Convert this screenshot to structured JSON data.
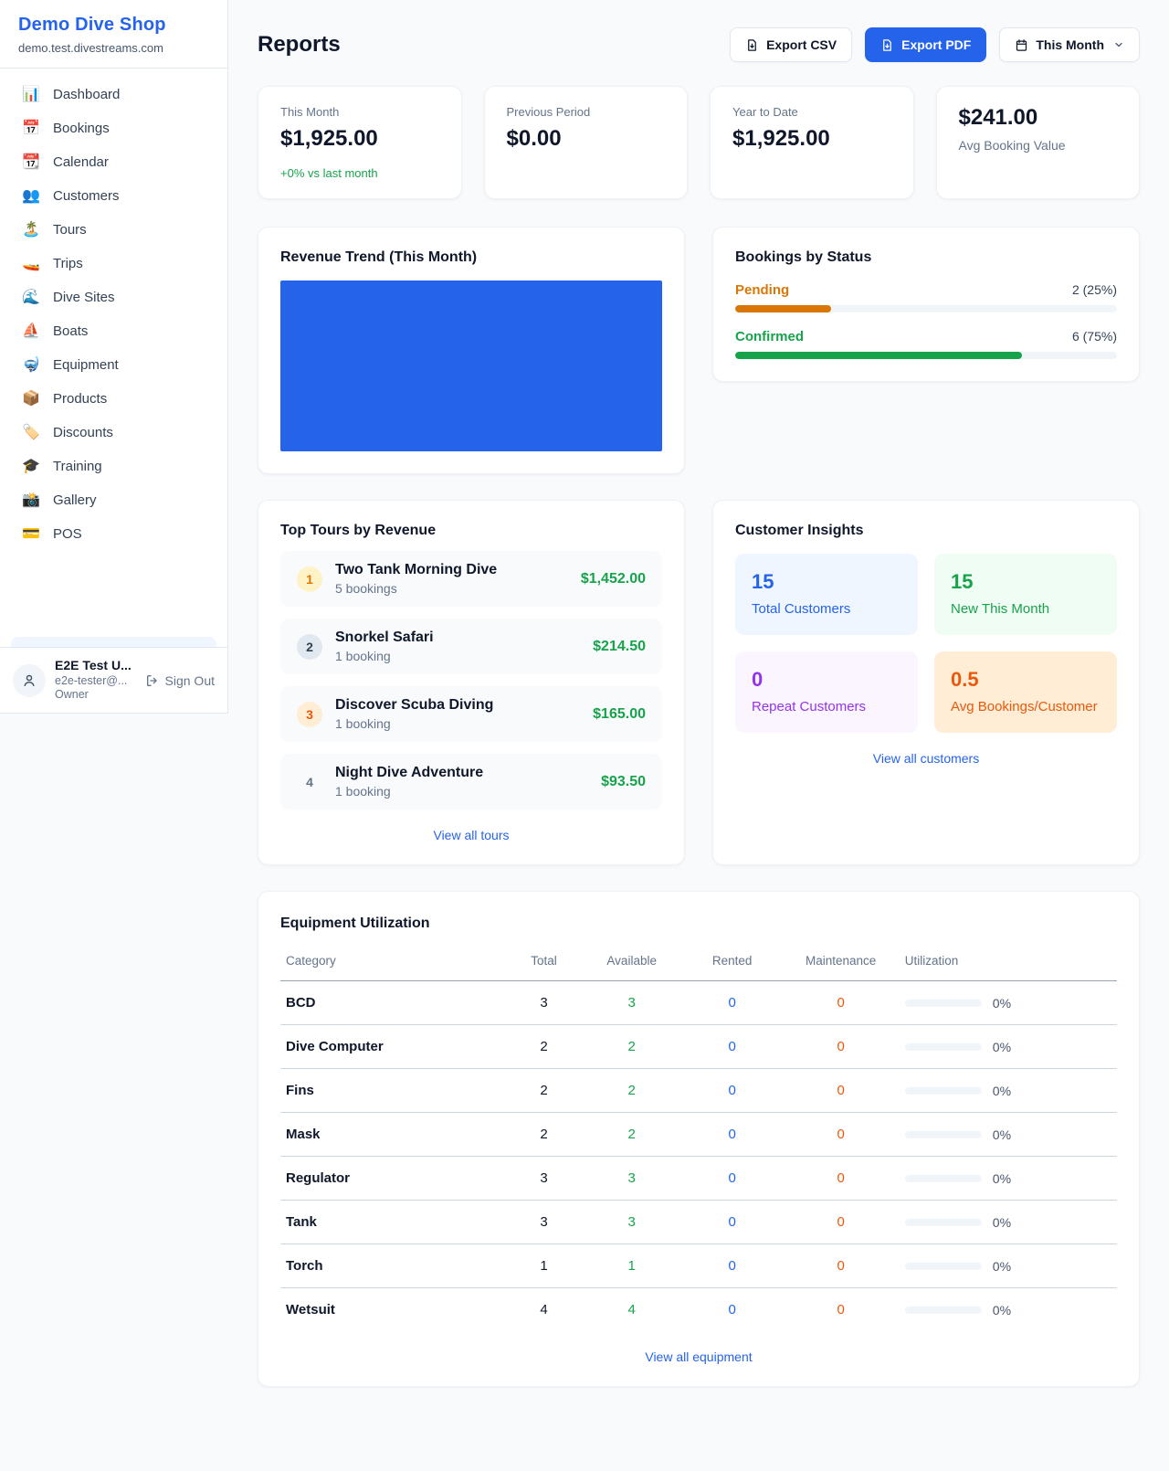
{
  "colors": {
    "primary": "#2563eb",
    "green": "#16a34a",
    "amber": "#d97706",
    "orange": "#ea580c",
    "purple": "#9333ea",
    "chart_bar": "#2563eb"
  },
  "sidebar": {
    "brand": {
      "name": "Demo Dive Shop",
      "domain": "demo.test.divestreams.com"
    },
    "nav": [
      {
        "label": "Dashboard",
        "icon": "📊"
      },
      {
        "label": "Bookings",
        "icon": "📅"
      },
      {
        "label": "Calendar",
        "icon": "📆"
      },
      {
        "label": "Customers",
        "icon": "👥"
      },
      {
        "label": "Tours",
        "icon": "🏝️"
      },
      {
        "label": "Trips",
        "icon": "🚤"
      },
      {
        "label": "Dive Sites",
        "icon": "🌊"
      },
      {
        "label": "Boats",
        "icon": "⛵"
      },
      {
        "label": "Equipment",
        "icon": "🤿"
      },
      {
        "label": "Products",
        "icon": "📦"
      },
      {
        "label": "Discounts",
        "icon": "🏷️"
      },
      {
        "label": "Training",
        "icon": "🎓"
      },
      {
        "label": "Gallery",
        "icon": "📸"
      },
      {
        "label": "POS",
        "icon": "💳"
      }
    ],
    "user": {
      "name": "E2E Test U...",
      "email": "e2e-tester@...",
      "role": "Owner",
      "signout_label": "Sign Out"
    }
  },
  "header": {
    "title": "Reports",
    "export_csv_label": "Export CSV",
    "export_pdf_label": "Export PDF",
    "period_label": "This Month"
  },
  "stats": [
    {
      "label": "This Month",
      "value": "$1,925.00",
      "delta": "+0% vs last month"
    },
    {
      "label": "Previous Period",
      "value": "$0.00"
    },
    {
      "label": "Year to Date",
      "value": "$1,925.00"
    },
    {
      "label": "Avg Booking Value",
      "value": "$241.00"
    }
  ],
  "revenue_trend": {
    "title": "Revenue Trend (This Month)",
    "bar_color": "#2563eb"
  },
  "bookings_by_status": {
    "title": "Bookings by Status",
    "rows": [
      {
        "label": "Pending",
        "count_text": "2 (25%)",
        "pct": 25,
        "color": "#d97706"
      },
      {
        "label": "Confirmed",
        "count_text": "6 (75%)",
        "pct": 75,
        "color": "#16a34a"
      }
    ]
  },
  "top_tours": {
    "title": "Top Tours by Revenue",
    "rows": [
      {
        "rank": "1",
        "name": "Two Tank Morning Dive",
        "bookings": "5 bookings",
        "amount": "$1,452.00"
      },
      {
        "rank": "2",
        "name": "Snorkel Safari",
        "bookings": "1 booking",
        "amount": "$214.50"
      },
      {
        "rank": "3",
        "name": "Discover Scuba Diving",
        "bookings": "1 booking",
        "amount": "$165.00"
      },
      {
        "rank": "4",
        "name": "Night Dive Adventure",
        "bookings": "1 booking",
        "amount": "$93.50"
      }
    ],
    "link_label": "View all tours"
  },
  "customer_insights": {
    "title": "Customer Insights",
    "tiles": [
      {
        "value": "15",
        "label": "Total Customers"
      },
      {
        "value": "15",
        "label": "New This Month"
      },
      {
        "value": "0",
        "label": "Repeat Customers"
      },
      {
        "value": "0.5",
        "label": "Avg Bookings/Customer"
      }
    ],
    "link_label": "View all customers"
  },
  "equipment": {
    "title": "Equipment Utilization",
    "columns": [
      "Category",
      "Total",
      "Available",
      "Rented",
      "Maintenance",
      "Utilization"
    ],
    "rows": [
      {
        "category": "BCD",
        "total": "3",
        "available": "3",
        "rented": "0",
        "maintenance": "0",
        "utilization": "0%"
      },
      {
        "category": "Dive Computer",
        "total": "2",
        "available": "2",
        "rented": "0",
        "maintenance": "0",
        "utilization": "0%"
      },
      {
        "category": "Fins",
        "total": "2",
        "available": "2",
        "rented": "0",
        "maintenance": "0",
        "utilization": "0%"
      },
      {
        "category": "Mask",
        "total": "2",
        "available": "2",
        "rented": "0",
        "maintenance": "0",
        "utilization": "0%"
      },
      {
        "category": "Regulator",
        "total": "3",
        "available": "3",
        "rented": "0",
        "maintenance": "0",
        "utilization": "0%"
      },
      {
        "category": "Tank",
        "total": "3",
        "available": "3",
        "rented": "0",
        "maintenance": "0",
        "utilization": "0%"
      },
      {
        "category": "Torch",
        "total": "1",
        "available": "1",
        "rented": "0",
        "maintenance": "0",
        "utilization": "0%"
      },
      {
        "category": "Wetsuit",
        "total": "4",
        "available": "4",
        "rented": "0",
        "maintenance": "0",
        "utilization": "0%"
      }
    ],
    "link_label": "View all equipment"
  }
}
